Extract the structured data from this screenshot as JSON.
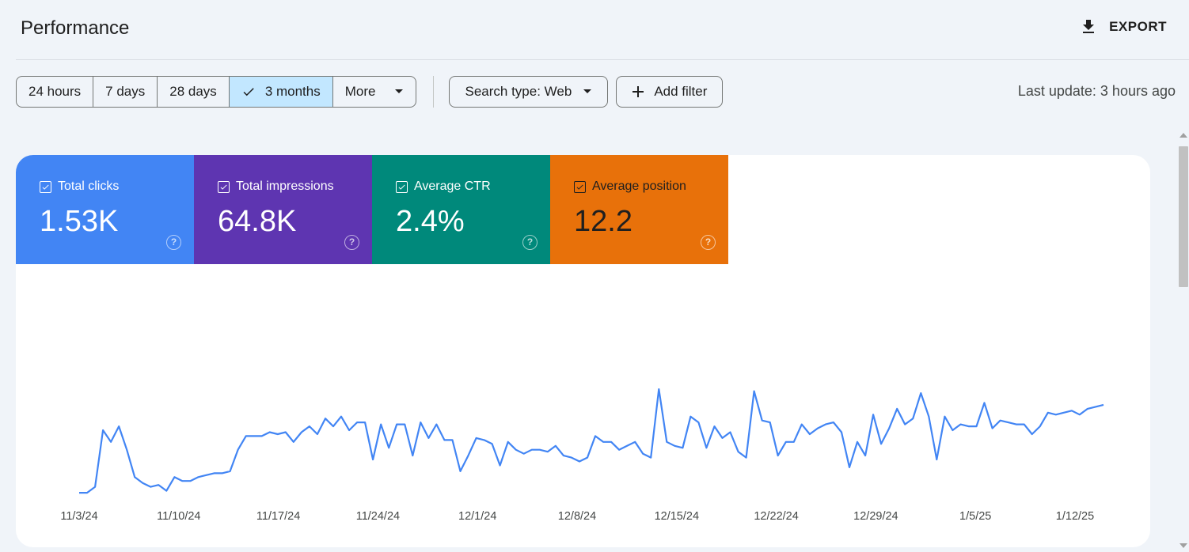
{
  "header": {
    "title": "Performance",
    "export_label": "EXPORT"
  },
  "filters": {
    "ranges": [
      {
        "label": "24 hours",
        "active": false
      },
      {
        "label": "7 days",
        "active": false
      },
      {
        "label": "28 days",
        "active": false
      },
      {
        "label": "3 months",
        "active": true
      },
      {
        "label": "More",
        "active": false
      }
    ],
    "search_type_label": "Search type: Web",
    "add_filter_label": "Add filter",
    "last_update": "Last update: 3 hours ago"
  },
  "metrics": [
    {
      "label": "Total clicks",
      "value": "1.53K",
      "color": "#4285f4",
      "checked": true
    },
    {
      "label": "Total impressions",
      "value": "64.8K",
      "color": "#5e35b1",
      "checked": true
    },
    {
      "label": "Average CTR",
      "value": "2.4%",
      "color": "#00897b",
      "checked": true
    },
    {
      "label": "Average position",
      "value": "12.2",
      "color": "#e8710a",
      "checked": true
    }
  ],
  "icons": {
    "export": "download-icon",
    "help": "help-circle-icon",
    "check": "check-icon",
    "dropdown": "arrow-drop-down-icon",
    "add": "plus-icon",
    "metric_checkbox": "checkbox-checked-icon"
  },
  "chart_data": {
    "type": "line",
    "x_ticks": [
      "11/3/24",
      "11/10/24",
      "11/17/24",
      "11/24/24",
      "12/1/24",
      "12/8/24",
      "12/15/24",
      "12/22/24",
      "12/29/24",
      "1/5/25",
      "1/12/25"
    ],
    "x_start": "11/1/24",
    "grid": false,
    "legend": "metric cards above chart",
    "note": "Values are relative levels (0-100) per series; each series uses its own hidden scale.",
    "series": [
      {
        "name": "Total clicks",
        "color": "#4285f4",
        "values": [
          2,
          2,
          5,
          34,
          28,
          36,
          24,
          10,
          7,
          5,
          6,
          3,
          10,
          8,
          8,
          10,
          11,
          12,
          12,
          13,
          24,
          31,
          31,
          31,
          33,
          32,
          33,
          28,
          33,
          36,
          32,
          40,
          36,
          41,
          34,
          38,
          38,
          19,
          37,
          25,
          37,
          37,
          21,
          38,
          30,
          37,
          29,
          29,
          13,
          21,
          30,
          29,
          27,
          16,
          28,
          24,
          22,
          24,
          24,
          23,
          26,
          21,
          20,
          18,
          20,
          31,
          28,
          28,
          24,
          26,
          28,
          22,
          20,
          55,
          28,
          26,
          25,
          41,
          38,
          25,
          36,
          30,
          33,
          23,
          20,
          54,
          39,
          38,
          21,
          28,
          28,
          37,
          32,
          35,
          37,
          38,
          33,
          15,
          28,
          21,
          42,
          27,
          35,
          45,
          37,
          40,
          53,
          41,
          19,
          41,
          34,
          37,
          36,
          36,
          48,
          35,
          39,
          38,
          37,
          37,
          32,
          36,
          43,
          42,
          43,
          44,
          42,
          45,
          46,
          47
        ]
      }
    ]
  }
}
